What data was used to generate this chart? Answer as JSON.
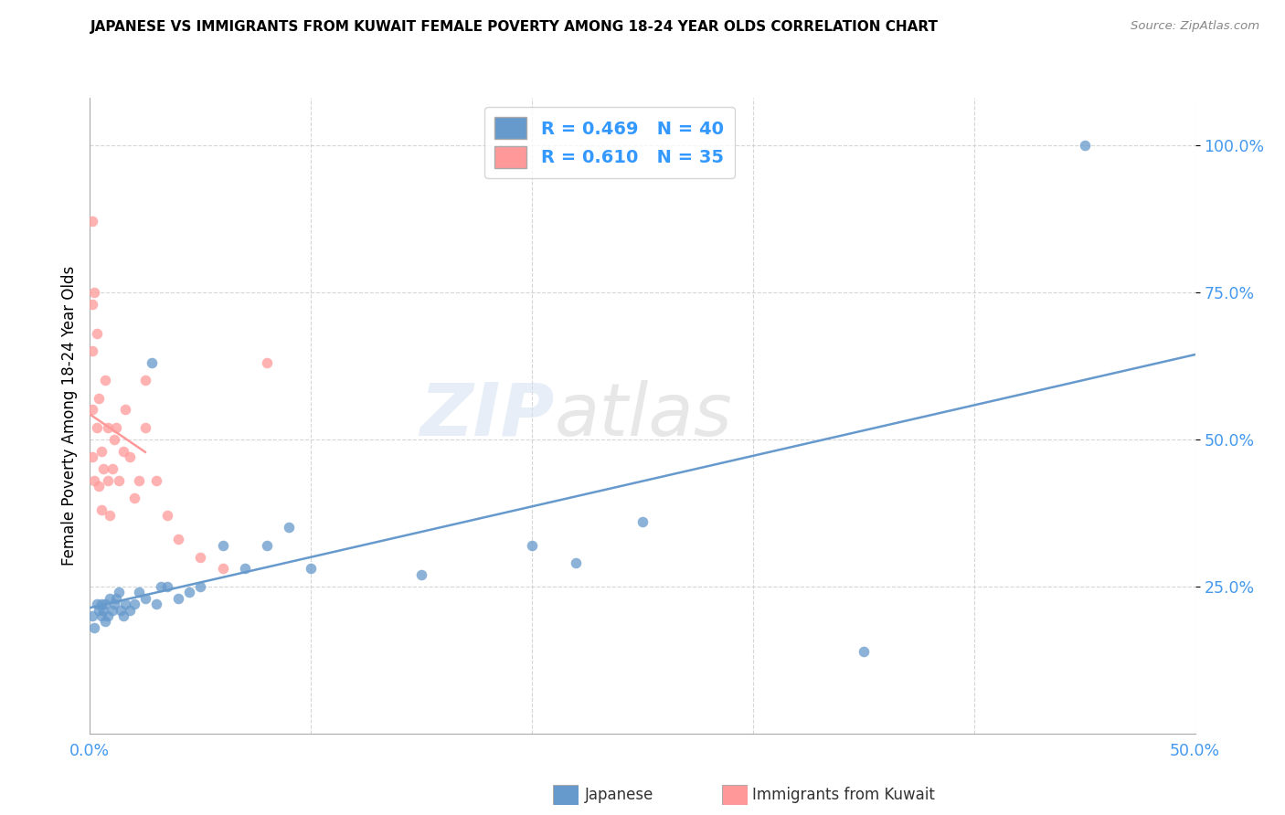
{
  "title": "JAPANESE VS IMMIGRANTS FROM KUWAIT FEMALE POVERTY AMONG 18-24 YEAR OLDS CORRELATION CHART",
  "source": "Source: ZipAtlas.com",
  "ylabel": "Female Poverty Among 18-24 Year Olds",
  "xlim": [
    0.0,
    0.5
  ],
  "ylim": [
    0.0,
    1.08
  ],
  "xticks": [
    0.0,
    0.1,
    0.2,
    0.3,
    0.4,
    0.5
  ],
  "xticklabels": [
    "0.0%",
    "",
    "",
    "",
    "",
    "50.0%"
  ],
  "ytick_positions": [
    0.25,
    0.5,
    0.75,
    1.0
  ],
  "yticklabels": [
    "25.0%",
    "50.0%",
    "75.0%",
    "100.0%"
  ],
  "japanese_color": "#6699CC",
  "kuwait_color": "#FF9999",
  "japanese_r": 0.469,
  "japanese_n": 40,
  "kuwait_r": 0.61,
  "kuwait_n": 35,
  "watermark_zip": "ZIP",
  "watermark_atlas": "atlas",
  "japanese_x": [
    0.001,
    0.002,
    0.003,
    0.004,
    0.005,
    0.005,
    0.006,
    0.007,
    0.007,
    0.008,
    0.009,
    0.01,
    0.011,
    0.012,
    0.013,
    0.014,
    0.015,
    0.016,
    0.018,
    0.02,
    0.022,
    0.025,
    0.028,
    0.03,
    0.032,
    0.035,
    0.04,
    0.045,
    0.05,
    0.06,
    0.07,
    0.08,
    0.09,
    0.1,
    0.15,
    0.2,
    0.22,
    0.25,
    0.35,
    0.45
  ],
  "japanese_y": [
    0.2,
    0.18,
    0.22,
    0.21,
    0.2,
    0.22,
    0.21,
    0.19,
    0.22,
    0.2,
    0.23,
    0.21,
    0.22,
    0.23,
    0.24,
    0.21,
    0.2,
    0.22,
    0.21,
    0.22,
    0.24,
    0.23,
    0.63,
    0.22,
    0.25,
    0.25,
    0.23,
    0.24,
    0.25,
    0.32,
    0.28,
    0.32,
    0.35,
    0.28,
    0.27,
    0.32,
    0.29,
    0.36,
    0.14,
    1.0
  ],
  "kuwait_x": [
    0.001,
    0.001,
    0.001,
    0.001,
    0.001,
    0.002,
    0.002,
    0.003,
    0.003,
    0.004,
    0.004,
    0.005,
    0.005,
    0.006,
    0.007,
    0.008,
    0.008,
    0.009,
    0.01,
    0.011,
    0.012,
    0.013,
    0.015,
    0.016,
    0.018,
    0.02,
    0.022,
    0.025,
    0.025,
    0.03,
    0.035,
    0.04,
    0.05,
    0.06,
    0.08
  ],
  "kuwait_y": [
    0.87,
    0.73,
    0.65,
    0.55,
    0.47,
    0.75,
    0.43,
    0.68,
    0.52,
    0.57,
    0.42,
    0.48,
    0.38,
    0.45,
    0.6,
    0.52,
    0.43,
    0.37,
    0.45,
    0.5,
    0.52,
    0.43,
    0.48,
    0.55,
    0.47,
    0.4,
    0.43,
    0.6,
    0.52,
    0.43,
    0.37,
    0.33,
    0.3,
    0.28,
    0.63
  ]
}
